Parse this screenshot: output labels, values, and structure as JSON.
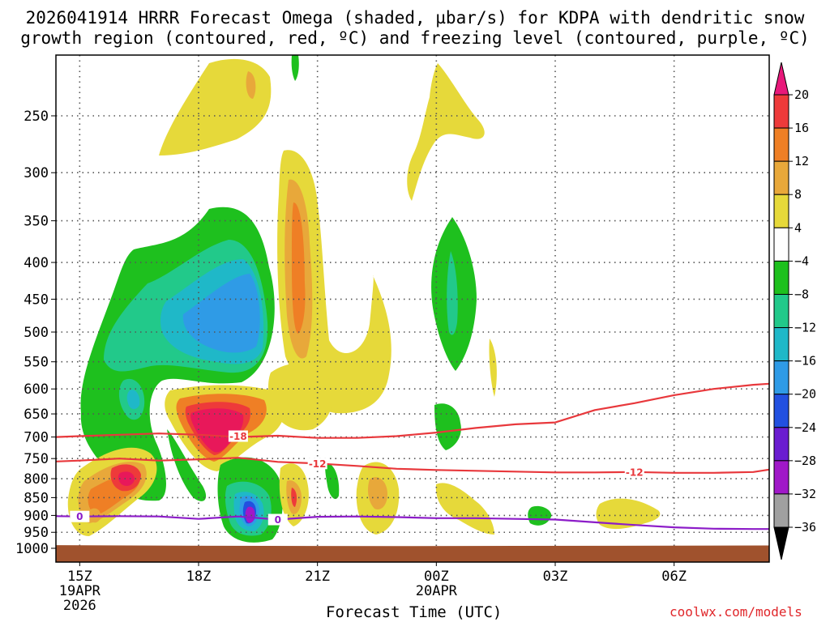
{
  "title": {
    "line1": "2026041914 HRRR Forecast Omega (shaded, µbar/s) for KDPA with dendritic snow",
    "line2": "growth region (contoured, red, ºC) and freezing level (contoured, purple, ºC)"
  },
  "credit": "coolwx.com/models",
  "colors": {
    "dendritic_contour": "#e8383c",
    "freezing_contour": "#8c1cc8",
    "ground": "#a0522d",
    "gridlines": "#555555"
  },
  "chart_data": {
    "type": "heatmap",
    "title": "2026041914 HRRR Forecast Omega (shaded, µbar/s) for KDPA with dendritic snow growth region (contoured, red, ºC) and freezing level (contoured, purple, ºC)",
    "xlabel": "Forecast Time (UTC)",
    "ylabel": "",
    "x_ticks": [
      {
        "label": "15Z",
        "date": "19APR",
        "year": "2026",
        "hour": 0
      },
      {
        "label": "18Z",
        "date": "",
        "year": "",
        "hour": 3
      },
      {
        "label": "21Z",
        "date": "",
        "year": "",
        "hour": 6
      },
      {
        "label": "00Z",
        "date": "20APR",
        "year": "",
        "hour": 9
      },
      {
        "label": "03Z",
        "date": "",
        "year": "",
        "hour": 12
      },
      {
        "label": "06Z",
        "date": "",
        "year": "",
        "hour": 15
      }
    ],
    "xlim": [
      -0.6,
      17.4
    ],
    "y_ticks": [
      250,
      300,
      350,
      400,
      450,
      500,
      550,
      600,
      650,
      700,
      750,
      800,
      850,
      900,
      950,
      1000
    ],
    "ylim_hpa": [
      200,
      1020
    ],
    "y_axis": "log-pressure (inverted)",
    "grid": true,
    "colorbar": {
      "levels": [
        "20",
        "16",
        "12",
        "8",
        "4",
        "−4",
        "−8",
        "−12",
        "−16",
        "−20",
        "−24",
        "−28",
        "−32",
        "−36"
      ],
      "colors": [
        "#e8185a",
        "#ee3a3a",
        "#ef7f25",
        "#e8a83a",
        "#e6d93a",
        "#ffffff",
        "#1ec01e",
        "#22c98a",
        "#1fb8c8",
        "#2f9be6",
        "#2250e0",
        "#6a1cd0",
        "#a018c8",
        "#a0a0a0"
      ],
      "top_arrow_color": "#e8187a",
      "bottom_arrow_color": "#000000"
    },
    "omega_features": [
      {
        "name": "upper-yellow",
        "center_hour": 3.0,
        "center_hpa": 260,
        "value": 4
      },
      {
        "name": "ascent-core-blue",
        "center_hour": 3.2,
        "center_hpa": 470,
        "value": -16
      },
      {
        "name": "descent-core-pink",
        "center_hour": 3.0,
        "center_hpa": 690,
        "value": 20
      },
      {
        "name": "low-level-ascent-purple",
        "center_hour": 4.0,
        "center_hpa": 905,
        "value": -28
      },
      {
        "name": "low-level-descent-red",
        "center_hour": 1.0,
        "center_hpa": 800,
        "value": 16
      },
      {
        "name": "midlevel-descent-orange",
        "center_hour": 5.0,
        "center_hpa": 420,
        "value": 12
      },
      {
        "name": "00Z-ascent-green",
        "center_hour": 9.0,
        "center_hpa": 430,
        "value": -8
      }
    ],
    "contour_series": [
      {
        "name": "-18 °C isotherm",
        "label": "-18",
        "x": [
          -0.6,
          0,
          1,
          2,
          3,
          4,
          5,
          6,
          7,
          8,
          9,
          10,
          11,
          12,
          13,
          14,
          15,
          16,
          17,
          17.4
        ],
        "y": [
          700,
          698,
          695,
          692,
          695,
          700,
          697,
          702,
          702,
          698,
          690,
          680,
          672,
          668,
          642,
          628,
          612,
          600,
          592,
          590
        ]
      },
      {
        "name": "-12 °C isotherm",
        "label": "-12",
        "x": [
          -0.6,
          0,
          1,
          2,
          3,
          4,
          5,
          6,
          7,
          8,
          9,
          10,
          11,
          12,
          13,
          14,
          15,
          16,
          17,
          17.4
        ],
        "y": [
          757,
          755,
          750,
          755,
          752,
          748,
          758,
          762,
          768,
          775,
          778,
          780,
          782,
          784,
          784,
          783,
          785,
          785,
          783,
          777
        ]
      },
      {
        "name": "0 °C isotherm (freezing level)",
        "label": "0",
        "x": [
          -0.6,
          0,
          1,
          2,
          3,
          4,
          5,
          6,
          7,
          8,
          9,
          10,
          11,
          12,
          13,
          14,
          15,
          16,
          17,
          17.4
        ],
        "y": [
          902,
          903,
          902,
          903,
          910,
          903,
          912,
          904,
          903,
          905,
          908,
          908,
          910,
          912,
          920,
          928,
          935,
          939,
          940,
          940
        ]
      }
    ],
    "contour_labels": [
      {
        "text": "-18",
        "hour": 4.0,
        "hpa": 698,
        "series": 0
      },
      {
        "text": "-12",
        "hour": 6.0,
        "hpa": 762,
        "series": 1
      },
      {
        "text": "-12",
        "hour": 14.0,
        "hpa": 783,
        "series": 1
      },
      {
        "text": "0",
        "hour": 0.0,
        "hpa": 903,
        "series": 2
      },
      {
        "text": "0",
        "hour": 5.0,
        "hpa": 912,
        "series": 2
      }
    ]
  }
}
